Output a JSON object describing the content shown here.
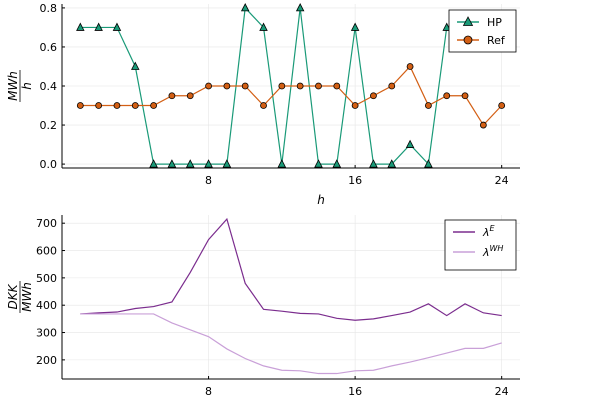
{
  "chart_data": [
    {
      "type": "line",
      "xlabel": "h",
      "ylabel": "MWh / h",
      "ylabel_num": "MWh",
      "ylabel_den": "h",
      "xlim": [
        0,
        25
      ],
      "ylim": [
        -0.02,
        0.82
      ],
      "xticks": [
        8,
        16,
        24
      ],
      "xtick_labels": [
        "8",
        "16",
        "24"
      ],
      "yticks": [
        0.0,
        0.2,
        0.4,
        0.6,
        0.8
      ],
      "ytick_labels": [
        "0.0",
        "0.2",
        "0.4",
        "0.6",
        "0.8"
      ],
      "grid": true,
      "legend_position": "top-right",
      "x": [
        1,
        2,
        3,
        4,
        5,
        6,
        7,
        8,
        9,
        10,
        11,
        12,
        13,
        14,
        15,
        16,
        17,
        18,
        19,
        20,
        21,
        22,
        23,
        24
      ],
      "series": [
        {
          "name": "HP",
          "color": "#1a9a78",
          "marker": "triangle",
          "values": [
            0.7,
            0.7,
            0.7,
            0.5,
            0.0,
            0.0,
            0.0,
            0.0,
            0.0,
            0.8,
            0.7,
            0.0,
            0.8,
            0.0,
            0.0,
            0.7,
            0.0,
            0.0,
            0.1,
            0.0,
            0.7,
            0.7,
            0.7,
            0.7
          ]
        },
        {
          "name": "Ref",
          "color": "#d35f14",
          "marker": "circle",
          "values": [
            0.3,
            0.3,
            0.3,
            0.3,
            0.3,
            0.35,
            0.35,
            0.4,
            0.4,
            0.4,
            0.3,
            0.4,
            0.4,
            0.4,
            0.4,
            0.3,
            0.35,
            0.4,
            0.5,
            0.3,
            0.35,
            0.35,
            0.2,
            0.3
          ]
        }
      ]
    },
    {
      "type": "line",
      "xlabel": "",
      "ylabel": "DKK / MWh",
      "ylabel_num": "DKK",
      "ylabel_den": "MWh",
      "xlim": [
        0,
        25
      ],
      "ylim": [
        130,
        730
      ],
      "xticks": [
        8,
        16,
        24
      ],
      "xtick_labels": [
        "8",
        "16",
        "24"
      ],
      "yticks": [
        200,
        300,
        400,
        500,
        600,
        700
      ],
      "ytick_labels": [
        "200",
        "300",
        "400",
        "500",
        "600",
        "700"
      ],
      "grid": true,
      "legend_position": "top-right",
      "x": [
        1,
        2,
        3,
        4,
        5,
        6,
        7,
        8,
        9,
        10,
        11,
        12,
        13,
        14,
        15,
        16,
        17,
        18,
        19,
        20,
        21,
        22,
        23,
        24
      ],
      "series": [
        {
          "name": "λ^E",
          "label_base": "λ",
          "label_sup": "E",
          "color": "#7b2d8e",
          "values": [
            368,
            372,
            375,
            388,
            395,
            412,
            520,
            640,
            715,
            480,
            385,
            378,
            370,
            368,
            352,
            345,
            350,
            362,
            375,
            405,
            362,
            405,
            372,
            362
          ]
        },
        {
          "name": "λ^WH",
          "label_base": "λ",
          "label_sup": "WH",
          "color": "#c9a0d8",
          "values": [
            368,
            368,
            368,
            368,
            368,
            335,
            310,
            285,
            240,
            205,
            178,
            162,
            160,
            150,
            150,
            160,
            162,
            178,
            192,
            208,
            225,
            242,
            242,
            262
          ]
        }
      ]
    }
  ]
}
